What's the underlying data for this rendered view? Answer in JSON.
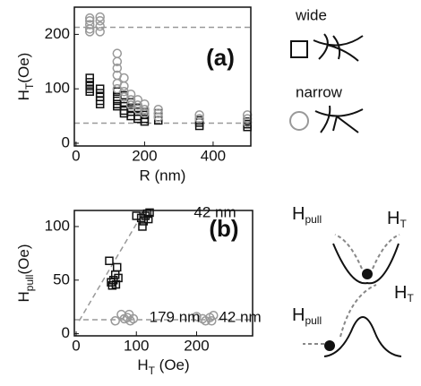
{
  "chart_data": [
    {
      "type": "scatter",
      "panel": "(a)",
      "xlabel": "R (nm)",
      "ylabel": {
        "main": "H",
        "sub": "T",
        "unit": "(Oe)"
      },
      "xlim": [
        -5,
        510
      ],
      "ylim": [
        -5,
        250
      ],
      "xticks": [
        0,
        200,
        400
      ],
      "yticks": [
        0,
        100,
        200
      ],
      "series": [
        {
          "name": "wide",
          "marker": "square",
          "color": "#111111",
          "x": [
            40,
            40,
            40,
            40,
            40,
            70,
            70,
            70,
            70,
            70,
            120,
            120,
            120,
            120,
            120,
            140,
            140,
            140,
            140,
            140,
            160,
            160,
            160,
            160,
            180,
            180,
            180,
            180,
            200,
            200,
            200,
            200,
            240,
            240,
            240,
            360,
            360,
            360,
            500,
            500,
            500
          ],
          "y": [
            120,
            112,
            105,
            100,
            95,
            100,
            92,
            85,
            78,
            72,
            95,
            85,
            78,
            72,
            68,
            88,
            75,
            68,
            60,
            55,
            75,
            65,
            58,
            50,
            65,
            58,
            50,
            45,
            58,
            52,
            45,
            40,
            55,
            48,
            42,
            42,
            38,
            32,
            40,
            35,
            30
          ]
        },
        {
          "name": "narrow",
          "marker": "circle",
          "color": "#999999",
          "x": [
            40,
            40,
            40,
            40,
            40,
            70,
            70,
            70,
            70,
            120,
            120,
            120,
            120,
            120,
            120,
            140,
            140,
            140,
            140,
            160,
            160,
            160,
            180,
            180,
            180,
            200,
            200,
            200,
            240,
            240,
            240,
            360,
            360,
            500,
            500,
            500
          ],
          "y": [
            230,
            225,
            218,
            210,
            205,
            232,
            225,
            215,
            205,
            165,
            150,
            138,
            125,
            110,
            100,
            120,
            105,
            95,
            85,
            90,
            80,
            70,
            80,
            70,
            62,
            72,
            62,
            55,
            62,
            55,
            48,
            52,
            45,
            52,
            45,
            38
          ]
        }
      ],
      "ref_lines": [
        {
          "x": [
            -5,
            510
          ],
          "y": [
            213,
            213
          ]
        },
        {
          "x": [
            -5,
            510
          ],
          "y": [
            37,
            37
          ]
        }
      ],
      "annotations": []
    },
    {
      "type": "scatter",
      "panel": "(b)",
      "xlabel": {
        "main": "H",
        "sub": "T",
        "unit": " (Oe)"
      },
      "ylabel": {
        "main": "H",
        "sub": "pull",
        "unit": "(Oe)"
      },
      "xlim": [
        -3,
        293
      ],
      "ylim": [
        -2,
        115
      ],
      "xticks": [
        0,
        100,
        200
      ],
      "yticks": [
        0,
        50,
        100
      ],
      "series": [
        {
          "name": "wide",
          "marker": "square",
          "color": "#111111",
          "x": [
            55,
            58,
            60,
            62,
            65,
            66,
            68,
            70,
            100,
            108,
            112,
            115,
            118,
            120,
            122,
            110
          ],
          "y": [
            68,
            48,
            45,
            50,
            55,
            46,
            62,
            52,
            110,
            108,
            105,
            110,
            112,
            107,
            113,
            100
          ]
        },
        {
          "name": "narrow",
          "marker": "circle",
          "color": "#999999",
          "x": [
            65,
            75,
            80,
            85,
            88,
            90,
            95,
            200,
            210,
            215,
            222,
            225,
            228
          ],
          "y": [
            12,
            18,
            14,
            15,
            18,
            12,
            14,
            16,
            14,
            12,
            15,
            12,
            17
          ]
        }
      ],
      "ref_lines": [
        {
          "x": [
            5,
            110
          ],
          "y": [
            12,
            112
          ]
        },
        {
          "x": [
            -3,
            293
          ],
          "y": [
            13,
            13
          ]
        }
      ],
      "annotations": [
        "42 nm",
        "179 nm",
        "42 nm"
      ]
    }
  ],
  "diagram": {
    "wide": "wide",
    "narrow": "narrow",
    "pull_label": {
      "main": "H",
      "sub": "pull"
    },
    "t_label": {
      "main": "H",
      "sub": "T"
    }
  }
}
